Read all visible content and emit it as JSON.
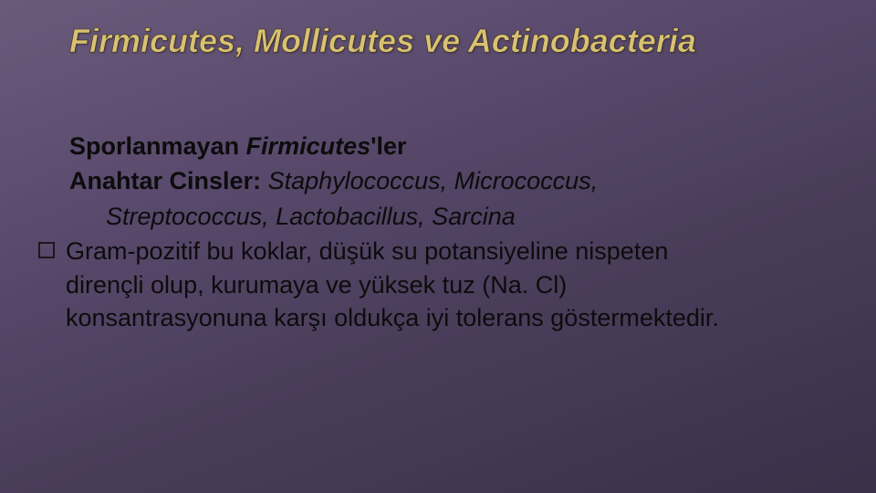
{
  "title": "Firmicutes,  Mollicutes  ve Actinobacteria",
  "line1_a": "Sporlanmayan ",
  "line1_b": "Firmicutes",
  "line1_c": "'ler",
  "line2_lead": "Anahtar Cinsler:",
  "line2_sep": " ",
  "line2_genera": "Staphylococcus, Micrococcus,",
  "line3": "Streptococcus,  Lactobacillus,  Sarcina",
  "bullet_l1": "Gram-pozitif bu koklar, düşük su potansiyeline nispeten",
  "bullet_l2": "dirençli olup, kurumaya ve yüksek tuz (Na. Cl)",
  "bullet_l3": "konsantrasyonuna karşı oldukça iyi tolerans göstermektedir.",
  "colors": {
    "title_fill": "#d8c173",
    "body_text": "#0c0c0c",
    "bg_from": "#6a5a7a",
    "bg_to": "#3a3048"
  },
  "fonts": {
    "title_pt": 36,
    "body_pt": 27
  }
}
